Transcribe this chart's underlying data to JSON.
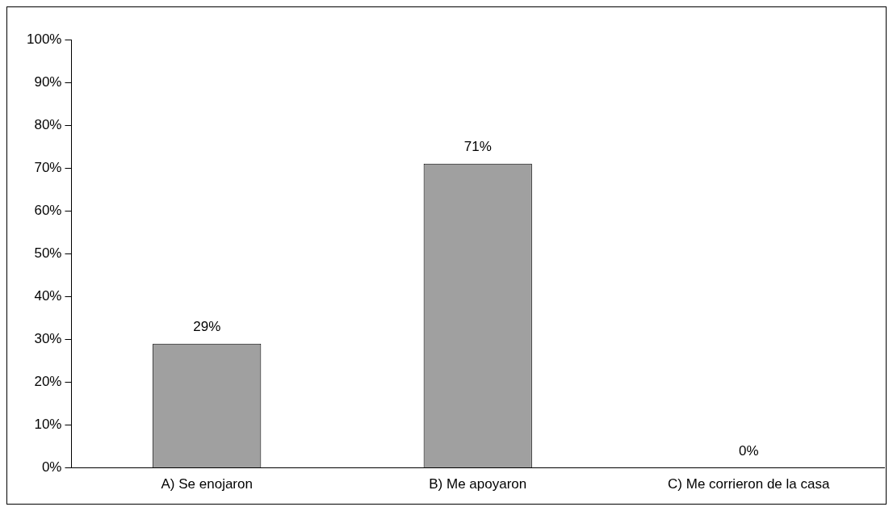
{
  "chart_data": {
    "type": "bar",
    "categories": [
      "A) Se enojaron",
      "B) Me apoyaron",
      "C) Me corrieron de la casa"
    ],
    "values": [
      29,
      71,
      0
    ],
    "value_labels": [
      "29%",
      "71%",
      "0%"
    ],
    "color": "#a0a0a0",
    "ylim": [
      0,
      100
    ],
    "yticks": [
      {
        "value": 0,
        "label": "0%"
      },
      {
        "value": 10,
        "label": "10%"
      },
      {
        "value": 20,
        "label": "20%"
      },
      {
        "value": 30,
        "label": "30%"
      },
      {
        "value": 40,
        "label": "40%"
      },
      {
        "value": 50,
        "label": "50%"
      },
      {
        "value": 60,
        "label": "60%"
      },
      {
        "value": 70,
        "label": "70%"
      },
      {
        "value": 80,
        "label": "80%"
      },
      {
        "value": 90,
        "label": "90%"
      },
      {
        "value": 100,
        "label": "100%"
      }
    ],
    "grid": false,
    "legend": false
  }
}
